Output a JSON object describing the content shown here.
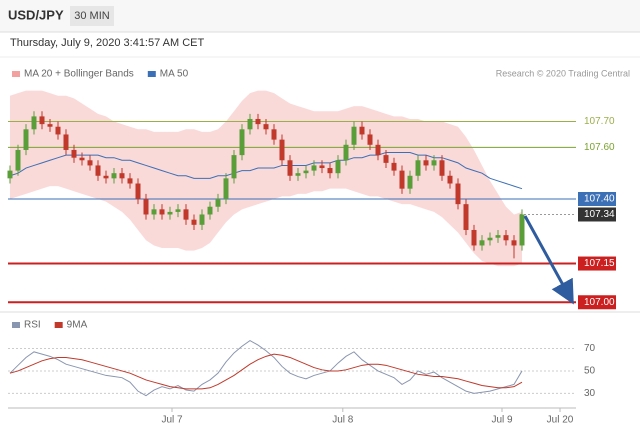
{
  "header": {
    "symbol": "USD/JPY",
    "interval": "30 MIN",
    "timestamp": "Thursday, July 9, 2020 3:41:57 AM CET"
  },
  "chart_data": [
    {
      "type": "candlestick",
      "credit": "Research © 2020 Trading Central",
      "up_color": "#5a9e3a",
      "down_color": "#c0392b",
      "open": [
        107.48,
        107.51,
        107.59,
        107.67,
        107.72,
        107.69,
        107.68,
        107.65,
        107.59,
        107.56,
        107.55,
        107.53,
        107.49,
        107.48,
        107.5,
        107.48,
        107.46,
        107.4,
        107.34,
        107.36,
        107.34,
        107.35,
        107.36,
        107.32,
        107.3,
        107.34,
        107.37,
        107.4,
        107.48,
        107.57,
        107.67,
        107.71,
        107.69,
        107.67,
        107.63,
        107.55,
        107.49,
        107.5,
        107.51,
        107.53,
        107.52,
        107.5,
        107.55,
        107.61,
        107.68,
        107.65,
        107.61,
        107.57,
        107.54,
        107.51,
        107.44,
        107.49,
        107.55,
        107.53,
        107.55,
        107.49,
        107.46,
        107.38,
        107.28,
        107.22,
        107.24,
        107.25,
        107.26,
        107.24,
        107.22
      ],
      "high": [
        107.53,
        107.61,
        107.69,
        107.74,
        107.74,
        107.71,
        107.7,
        107.67,
        107.61,
        107.58,
        107.57,
        107.55,
        107.51,
        107.52,
        107.52,
        107.5,
        107.48,
        107.42,
        107.38,
        107.38,
        107.37,
        107.38,
        107.38,
        107.34,
        107.36,
        107.39,
        107.42,
        107.5,
        107.59,
        107.69,
        107.73,
        107.73,
        107.71,
        107.69,
        107.65,
        107.57,
        107.52,
        107.53,
        107.55,
        107.55,
        107.54,
        107.57,
        107.63,
        107.7,
        107.7,
        107.67,
        107.63,
        107.59,
        107.56,
        107.53,
        107.51,
        107.57,
        107.57,
        107.57,
        107.57,
        107.51,
        107.48,
        107.4,
        107.3,
        107.26,
        107.27,
        107.28,
        107.28,
        107.26,
        107.36
      ],
      "low": [
        107.46,
        107.49,
        107.57,
        107.65,
        107.67,
        107.66,
        107.63,
        107.57,
        107.54,
        107.53,
        107.51,
        107.47,
        107.46,
        107.46,
        107.46,
        107.44,
        107.38,
        107.32,
        107.32,
        107.32,
        107.32,
        107.33,
        107.3,
        107.28,
        107.28,
        107.32,
        107.35,
        107.38,
        107.46,
        107.55,
        107.65,
        107.67,
        107.65,
        107.61,
        107.53,
        107.47,
        107.47,
        107.48,
        107.49,
        107.5,
        107.48,
        107.48,
        107.53,
        107.59,
        107.63,
        107.59,
        107.55,
        107.52,
        107.49,
        107.42,
        107.42,
        107.47,
        107.51,
        107.51,
        107.47,
        107.44,
        107.36,
        107.26,
        107.2,
        107.2,
        107.22,
        107.23,
        107.22,
        107.17,
        107.2
      ],
      "close": [
        107.51,
        107.59,
        107.67,
        107.72,
        107.69,
        107.68,
        107.65,
        107.59,
        107.56,
        107.55,
        107.53,
        107.49,
        107.48,
        107.5,
        107.48,
        107.46,
        107.4,
        107.34,
        107.36,
        107.34,
        107.35,
        107.36,
        107.32,
        107.3,
        107.34,
        107.37,
        107.4,
        107.48,
        107.57,
        107.67,
        107.71,
        107.69,
        107.67,
        107.63,
        107.55,
        107.49,
        107.5,
        107.51,
        107.53,
        107.52,
        107.5,
        107.55,
        107.61,
        107.68,
        107.65,
        107.61,
        107.57,
        107.54,
        107.51,
        107.44,
        107.49,
        107.55,
        107.53,
        107.55,
        107.49,
        107.46,
        107.38,
        107.28,
        107.22,
        107.24,
        107.25,
        107.26,
        107.24,
        107.22,
        107.34
      ],
      "bands": {
        "name": "MA 20 + Bollinger Bands",
        "color": "#f2a0a0",
        "upper": [
          107.8,
          107.81,
          107.82,
          107.82,
          107.82,
          107.81,
          107.8,
          107.8,
          107.79,
          107.77,
          107.75,
          107.73,
          107.72,
          107.7,
          107.69,
          107.68,
          107.67,
          107.67,
          107.66,
          107.66,
          107.66,
          107.66,
          107.67,
          107.67,
          107.66,
          107.66,
          107.67,
          107.7,
          107.74,
          107.78,
          107.81,
          107.82,
          107.82,
          107.81,
          107.79,
          107.77,
          107.76,
          107.75,
          107.74,
          107.74,
          107.74,
          107.74,
          107.75,
          107.76,
          107.76,
          107.75,
          107.74,
          107.73,
          107.72,
          107.72,
          107.71,
          107.71,
          107.7,
          107.7,
          107.7,
          107.69,
          107.68,
          107.64,
          107.59,
          107.53,
          107.47,
          107.42,
          107.37,
          107.34,
          107.35
        ],
        "lower": [
          107.4,
          107.41,
          107.42,
          107.43,
          107.44,
          107.45,
          107.45,
          107.44,
          107.43,
          107.42,
          107.41,
          107.4,
          107.39,
          107.37,
          107.35,
          107.32,
          107.28,
          107.24,
          107.22,
          107.21,
          107.21,
          107.21,
          107.2,
          107.2,
          107.21,
          107.23,
          107.27,
          107.31,
          107.34,
          107.36,
          107.37,
          107.38,
          107.39,
          107.4,
          107.41,
          107.41,
          107.42,
          107.42,
          107.43,
          107.43,
          107.44,
          107.44,
          107.44,
          107.43,
          107.42,
          107.41,
          107.41,
          107.4,
          107.39,
          107.38,
          107.38,
          107.37,
          107.36,
          107.35,
          107.33,
          107.3,
          107.27,
          107.23,
          107.19,
          107.16,
          107.15,
          107.14,
          107.14,
          107.14,
          107.15
        ]
      },
      "series": [
        {
          "name": "MA 50",
          "color": "#3b6fb6",
          "values": [
            107.49,
            107.5,
            107.52,
            107.53,
            107.54,
            107.55,
            107.56,
            107.57,
            107.57,
            107.57,
            107.57,
            107.57,
            107.56,
            107.56,
            107.55,
            107.55,
            107.54,
            107.53,
            107.52,
            107.51,
            107.5,
            107.49,
            107.49,
            107.48,
            107.48,
            107.48,
            107.49,
            107.49,
            107.5,
            107.51,
            107.51,
            107.52,
            107.52,
            107.52,
            107.53,
            107.53,
            107.53,
            107.53,
            107.54,
            107.54,
            107.54,
            107.55,
            107.55,
            107.56,
            107.56,
            107.57,
            107.57,
            107.58,
            107.58,
            107.58,
            107.58,
            107.57,
            107.57,
            107.56,
            107.56,
            107.55,
            107.54,
            107.52,
            107.51,
            107.5,
            107.48,
            107.47,
            107.46,
            107.45,
            107.44
          ]
        }
      ],
      "levels": [
        {
          "value": 107.7,
          "label": "107.70",
          "color": "#9aae4a",
          "boxed": false
        },
        {
          "value": 107.6,
          "label": "107.60",
          "color": "#7aa32e",
          "boxed": false
        },
        {
          "value": 107.4,
          "label": "107.40",
          "color": "#3b6fb6",
          "boxed": true
        },
        {
          "value": 107.34,
          "label": "107.34",
          "color": "#333333",
          "boxed": true,
          "line": "dotted"
        },
        {
          "value": 107.15,
          "label": "107.15",
          "color": "#cc1f1f",
          "boxed": true
        },
        {
          "value": 107.0,
          "label": "107.00",
          "color": "#cc1f1f",
          "boxed": true
        }
      ],
      "xlim": [
        -0.25,
        70.75
      ],
      "ylim": [
        106.97,
        107.83
      ]
    },
    {
      "type": "line",
      "series": [
        {
          "name": "RSI",
          "color": "#8a96b0",
          "values": [
            48,
            55,
            62,
            67,
            65,
            63,
            60,
            56,
            54,
            52,
            50,
            48,
            46,
            45,
            44,
            40,
            32,
            28,
            33,
            36,
            34,
            37,
            33,
            32,
            38,
            42,
            48,
            58,
            66,
            72,
            77,
            73,
            68,
            62,
            54,
            48,
            45,
            43,
            46,
            48,
            50,
            57,
            63,
            67,
            60,
            55,
            50,
            47,
            44,
            38,
            42,
            50,
            47,
            49,
            44,
            40,
            36,
            32,
            30,
            31,
            32,
            34,
            36,
            38,
            50
          ]
        },
        {
          "name": "9MA",
          "color": "#c0392b",
          "values": [
            48,
            50,
            53,
            56,
            59,
            61,
            62,
            62,
            61,
            60,
            58,
            56,
            54,
            52,
            50,
            48,
            45,
            42,
            40,
            38,
            36,
            35,
            34,
            34,
            34,
            35,
            38,
            42,
            46,
            51,
            56,
            60,
            63,
            65,
            64,
            62,
            59,
            56,
            53,
            51,
            50,
            50,
            51,
            53,
            55,
            56,
            56,
            55,
            53,
            51,
            49,
            47,
            46,
            45,
            45,
            44,
            43,
            41,
            39,
            37,
            36,
            35,
            35,
            36,
            40
          ]
        }
      ],
      "xlim": [
        -0.25,
        70.75
      ],
      "xticks": [
        {
          "value": 20.25,
          "label": "Jul 7"
        },
        {
          "value": 41.6,
          "label": "Jul 8"
        },
        {
          "value": 61.5,
          "label": "Jul 9"
        },
        {
          "value": 68.75,
          "label": "Jul 20"
        }
      ],
      "ylim": [
        17,
        82
      ],
      "yticks": [
        30,
        50,
        70
      ],
      "grid": true
    }
  ]
}
